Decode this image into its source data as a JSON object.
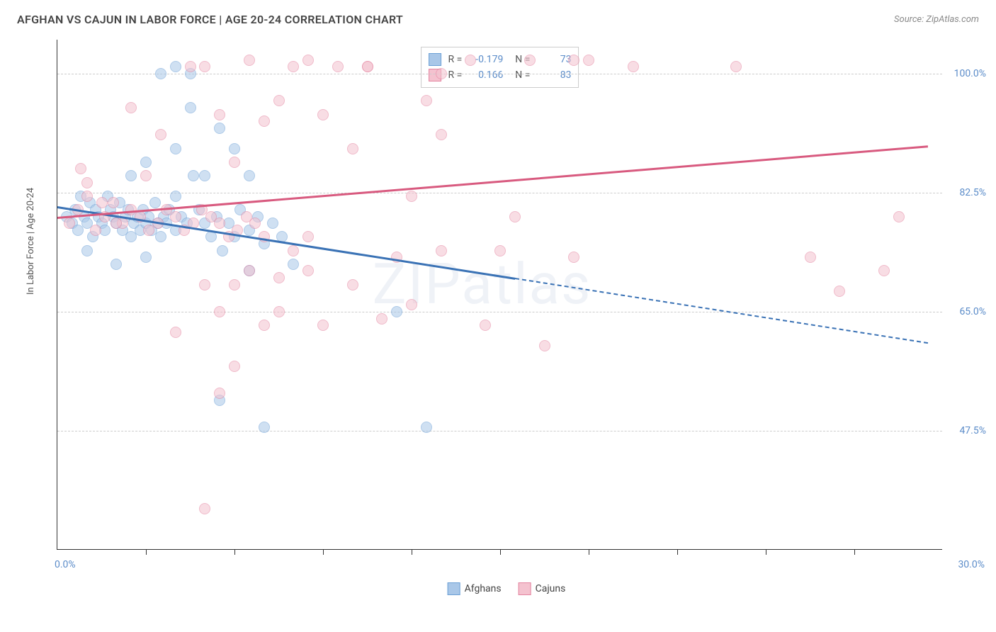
{
  "header": {
    "title": "AFGHAN VS CAJUN IN LABOR FORCE | AGE 20-24 CORRELATION CHART",
    "source": "Source: ZipAtlas.com"
  },
  "chart": {
    "type": "scatter",
    "ylabel": "In Labor Force | Age 20-24",
    "xlim": [
      0,
      30
    ],
    "ylim": [
      30,
      105
    ],
    "xlim_labels": [
      "0.0%",
      "30.0%"
    ],
    "yticks": [
      47.5,
      65.0,
      82.5,
      100.0
    ],
    "ytick_labels": [
      "47.5%",
      "65.0%",
      "82.5%",
      "100.0%"
    ],
    "xtick_marks": [
      3,
      6,
      9,
      12,
      15,
      18,
      21,
      24,
      27
    ],
    "background_color": "#ffffff",
    "grid_color": "#cccccc",
    "axis_color": "#333333",
    "tick_label_color": "#5b8cc9",
    "watermark": "ZIPatlas",
    "series": [
      {
        "name": "Afghans",
        "fill_color": "#a9c7e8",
        "stroke_color": "#6ca0d6",
        "line_color": "#3a72b5",
        "R": "-0.179",
        "N": "73",
        "trend": {
          "x1": 0,
          "y1": 80.5,
          "x2": 15.5,
          "y2": 70.0,
          "solid": true
        },
        "trend_ext": {
          "x1": 15.5,
          "y1": 70.0,
          "x2": 29.5,
          "y2": 60.5,
          "solid": false
        },
        "points": [
          [
            0.3,
            79
          ],
          [
            0.5,
            78
          ],
          [
            0.6,
            80
          ],
          [
            0.7,
            77
          ],
          [
            0.8,
            82
          ],
          [
            0.9,
            79
          ],
          [
            1.0,
            78
          ],
          [
            1.1,
            81
          ],
          [
            1.2,
            76
          ],
          [
            1.3,
            80
          ],
          [
            1.4,
            79
          ],
          [
            1.5,
            78
          ],
          [
            1.6,
            77
          ],
          [
            1.7,
            82
          ],
          [
            1.8,
            80
          ],
          [
            1.9,
            79
          ],
          [
            2.0,
            78
          ],
          [
            2.1,
            81
          ],
          [
            2.2,
            77
          ],
          [
            2.3,
            79
          ],
          [
            2.4,
            80
          ],
          [
            2.5,
            76
          ],
          [
            2.6,
            78
          ],
          [
            2.7,
            79
          ],
          [
            2.8,
            77
          ],
          [
            2.9,
            80
          ],
          [
            3.0,
            78
          ],
          [
            3.1,
            79
          ],
          [
            3.2,
            77
          ],
          [
            3.3,
            81
          ],
          [
            3.4,
            78
          ],
          [
            3.5,
            76
          ],
          [
            3.6,
            79
          ],
          [
            3.7,
            78
          ],
          [
            3.8,
            80
          ],
          [
            4.0,
            77
          ],
          [
            4.2,
            79
          ],
          [
            4.4,
            78
          ],
          [
            4.6,
            85
          ],
          [
            4.8,
            80
          ],
          [
            5.0,
            78
          ],
          [
            5.2,
            76
          ],
          [
            5.4,
            79
          ],
          [
            5.6,
            74
          ],
          [
            5.8,
            78
          ],
          [
            6.0,
            76
          ],
          [
            6.2,
            80
          ],
          [
            6.5,
            77
          ],
          [
            6.8,
            79
          ],
          [
            7.0,
            75
          ],
          [
            7.3,
            78
          ],
          [
            7.6,
            76
          ],
          [
            8.0,
            72
          ],
          [
            3.0,
            73
          ],
          [
            4.0,
            82
          ],
          [
            5.0,
            85
          ],
          [
            3.0,
            87
          ],
          [
            4.0,
            101
          ],
          [
            4.5,
            100
          ],
          [
            5.5,
            92
          ],
          [
            6.0,
            89
          ],
          [
            3.5,
            100
          ],
          [
            2.0,
            72
          ],
          [
            6.5,
            85
          ],
          [
            4.0,
            89
          ],
          [
            4.5,
            95
          ],
          [
            2.5,
            85
          ],
          [
            6.5,
            71
          ],
          [
            5.5,
            52
          ],
          [
            7.0,
            48
          ],
          [
            11.5,
            65
          ],
          [
            12.5,
            48
          ],
          [
            1.0,
            74
          ]
        ]
      },
      {
        "name": "Cajun",
        "legend_label": "Cajuns",
        "fill_color": "#f4c2cf",
        "stroke_color": "#e484a0",
        "line_color": "#d85a7f",
        "R": "0.166",
        "N": "83",
        "trend": {
          "x1": 0,
          "y1": 79.0,
          "x2": 29.5,
          "y2": 89.5,
          "solid": true
        },
        "trend_ext": null,
        "points": [
          [
            0.4,
            78
          ],
          [
            0.7,
            80
          ],
          [
            1.0,
            82
          ],
          [
            1.3,
            77
          ],
          [
            1.6,
            79
          ],
          [
            1.9,
            81
          ],
          [
            2.2,
            78
          ],
          [
            2.5,
            80
          ],
          [
            2.8,
            79
          ],
          [
            3.1,
            77
          ],
          [
            3.4,
            78
          ],
          [
            3.7,
            80
          ],
          [
            4.0,
            79
          ],
          [
            4.3,
            77
          ],
          [
            4.6,
            78
          ],
          [
            4.9,
            80
          ],
          [
            5.2,
            79
          ],
          [
            5.5,
            78
          ],
          [
            5.8,
            76
          ],
          [
            6.1,
            77
          ],
          [
            6.4,
            79
          ],
          [
            6.7,
            78
          ],
          [
            7.0,
            76
          ],
          [
            1.0,
            84
          ],
          [
            2.5,
            95
          ],
          [
            3.5,
            91
          ],
          [
            4.5,
            101
          ],
          [
            5.0,
            101
          ],
          [
            5.5,
            94
          ],
          [
            6.0,
            87
          ],
          [
            6.5,
            102
          ],
          [
            7.0,
            93
          ],
          [
            7.5,
            96
          ],
          [
            8.0,
            101
          ],
          [
            8.5,
            102
          ],
          [
            9.0,
            94
          ],
          [
            9.5,
            101
          ],
          [
            10.0,
            89
          ],
          [
            10.5,
            101
          ],
          [
            10.5,
            101
          ],
          [
            12.0,
            82
          ],
          [
            12.5,
            96
          ],
          [
            13.0,
            91
          ],
          [
            14.0,
            102
          ],
          [
            15.5,
            79
          ],
          [
            16.0,
            102
          ],
          [
            17.5,
            102
          ],
          [
            19.5,
            101
          ],
          [
            23.0,
            101
          ],
          [
            5.0,
            69
          ],
          [
            5.5,
            65
          ],
          [
            6.0,
            57
          ],
          [
            6.5,
            71
          ],
          [
            7.0,
            63
          ],
          [
            7.5,
            65
          ],
          [
            8.0,
            74
          ],
          [
            8.5,
            76
          ],
          [
            9.0,
            63
          ],
          [
            10.0,
            69
          ],
          [
            11.0,
            64
          ],
          [
            11.5,
            73
          ],
          [
            12.0,
            66
          ],
          [
            13.0,
            74
          ],
          [
            14.5,
            63
          ],
          [
            15.0,
            74
          ],
          [
            16.5,
            60
          ],
          [
            13.0,
            100
          ],
          [
            3.0,
            85
          ],
          [
            4.0,
            62
          ],
          [
            5.0,
            36
          ],
          [
            5.5,
            53
          ],
          [
            6.0,
            69
          ],
          [
            7.5,
            70
          ],
          [
            8.5,
            71
          ],
          [
            18.0,
            102
          ],
          [
            0.8,
            86
          ],
          [
            1.5,
            81
          ],
          [
            2.0,
            78
          ],
          [
            25.5,
            73
          ],
          [
            26.5,
            68
          ],
          [
            28.5,
            79
          ],
          [
            28.0,
            71
          ],
          [
            17.5,
            73
          ]
        ]
      }
    ],
    "legend_labels": [
      "Afghans",
      "Cajuns"
    ]
  }
}
